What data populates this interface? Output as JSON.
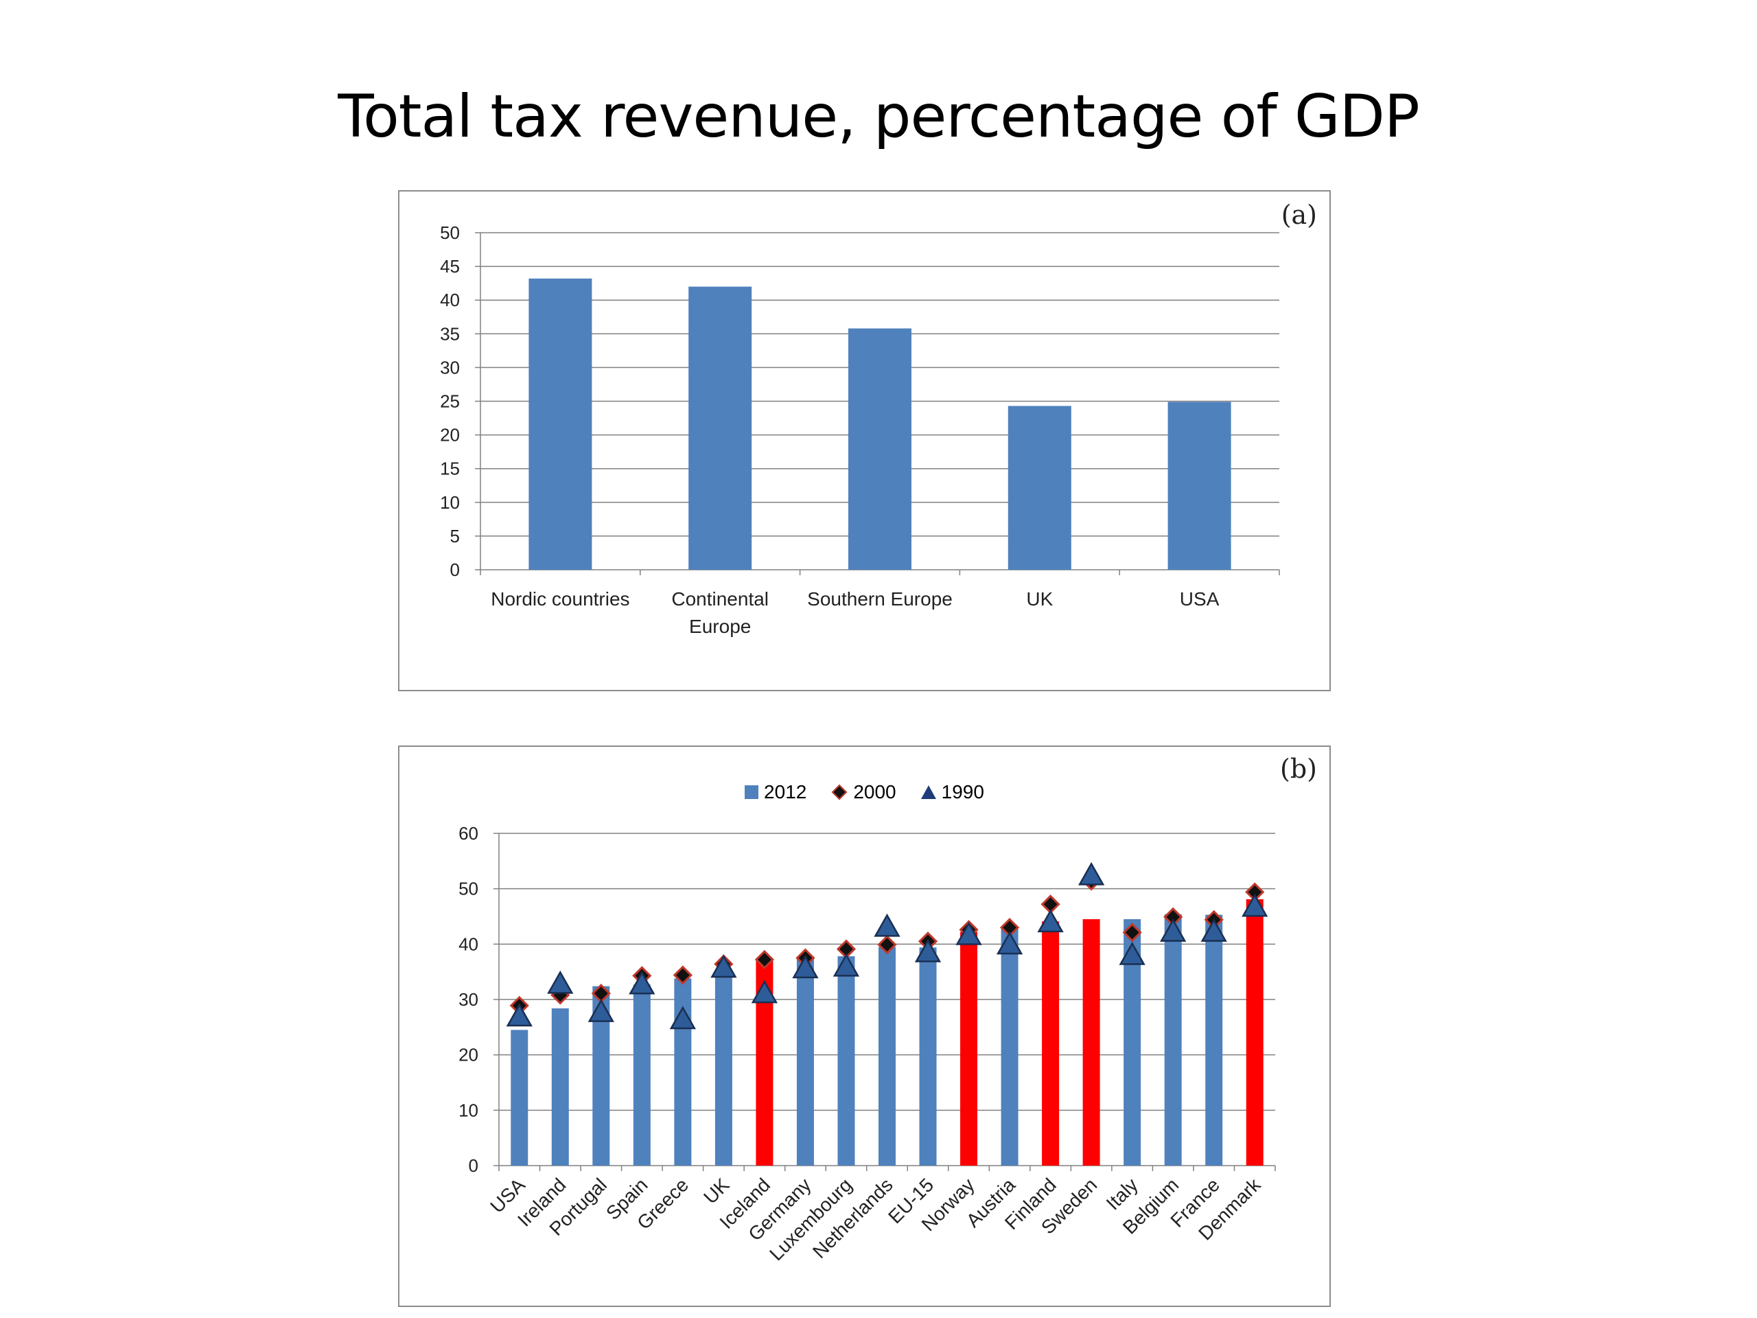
{
  "slide": {
    "title": "Total tax revenue, percentage of GDP"
  },
  "colors": {
    "bar_default": "#4f81bd",
    "bar_highlight": "#ff0000",
    "marker_2000_fill": "#111111",
    "marker_2000_edge": "#c0392b",
    "marker_1990_fill": "#2e5c99",
    "marker_1990_edge": "#1a2f52",
    "grid": "#808080"
  },
  "chart_data": [
    {
      "panel": "(a)",
      "type": "bar",
      "categories": [
        "Nordic countries",
        "Continental Europe",
        "Southern Europe",
        "UK",
        "USA"
      ],
      "values": [
        43.2,
        42,
        35.8,
        24.3,
        24.9
      ],
      "ylim": [
        0,
        50
      ],
      "yticks": [
        0,
        5,
        10,
        15,
        20,
        25,
        30,
        35,
        40,
        45,
        50
      ],
      "grid": true
    },
    {
      "panel": "(b)",
      "type": "bar",
      "categories": [
        "USA",
        "Ireland",
        "Portugal",
        "Spain",
        "Greece",
        "UK",
        "Iceland",
        "Germany",
        "Luxembourg",
        "Netherlands",
        "EU-15",
        "Norway",
        "Austria",
        "Finland",
        "Sweden",
        "Italy",
        "Belgium",
        "France",
        "Denmark"
      ],
      "highlighted": [
        "Iceland",
        "Norway",
        "Finland",
        "Sweden",
        "Denmark"
      ],
      "series": [
        {
          "name": "2012",
          "kind": "bar",
          "values": [
            24.5,
            28.4,
            32.4,
            32.7,
            33.8,
            35.4,
            37.2,
            37.6,
            37.8,
            39.5,
            39.4,
            42.2,
            43.1,
            44.1,
            44.5,
            44.5,
            45.4,
            45.3,
            48.1
          ]
        },
        {
          "name": "2000",
          "kind": "marker-diamond",
          "values": [
            28.9,
            30.8,
            31.1,
            34.3,
            34.4,
            36.4,
            37.2,
            37.5,
            39.1,
            39.9,
            40.5,
            42.6,
            43.0,
            47.2,
            51.4,
            42.1,
            44.9,
            44.4,
            49.4
          ]
        },
        {
          "name": "1990",
          "kind": "marker-triangle",
          "values": [
            26.7,
            32.6,
            27.5,
            32.5,
            26.2,
            35.5,
            30.9,
            35.4,
            35.7,
            42.9,
            38.3,
            41.4,
            39.7,
            43.7,
            52.2,
            37.8,
            42.0,
            42.0,
            46.5
          ]
        }
      ],
      "ylim": [
        0,
        60
      ],
      "yticks": [
        0,
        10,
        20,
        30,
        40,
        50,
        60
      ],
      "legend": "top-center",
      "grid": true
    }
  ]
}
